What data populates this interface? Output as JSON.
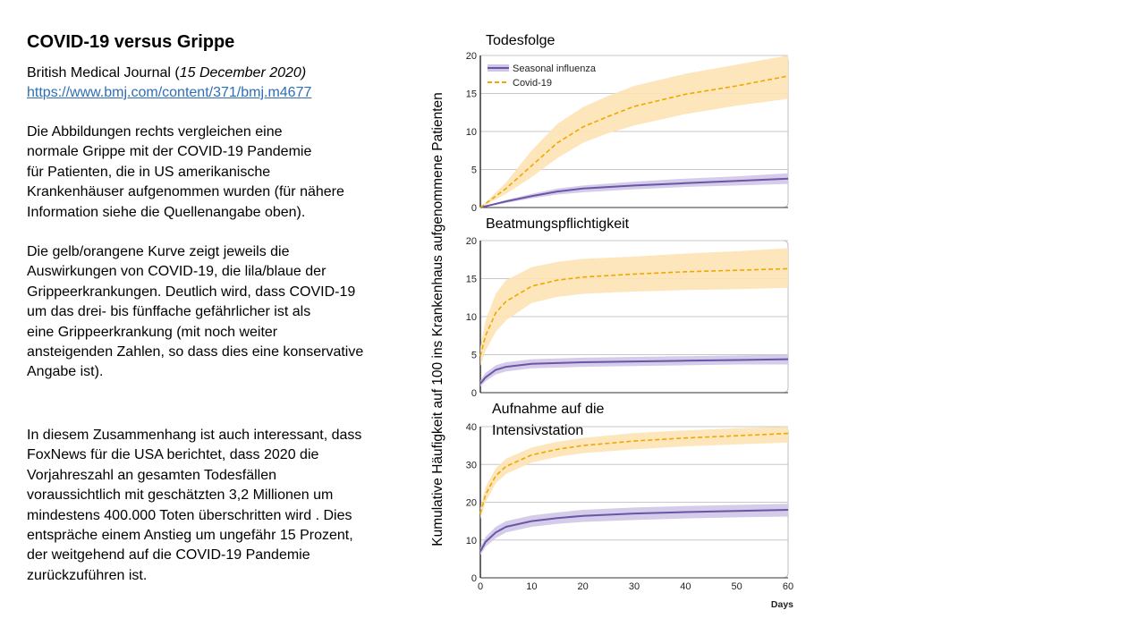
{
  "slide": {
    "title": "COVID-19 versus Grippe",
    "source_journal": "British Medical Journal (",
    "source_date": "15 December 2020)",
    "source_url": "https://www.bmj.com/content/371/bmj.m4677",
    "para1": [
      "Die Abbildungen rechts vergleichen eine",
      "normale Grippe mit der COVID-19 Pandemie",
      "für Patienten, die in US amerikanische",
      "Krankenhäuser aufgenommen wurden (für nähere",
      "Information siehe die Quellenangabe oben)."
    ],
    "para2": [
      "Die gelb/orangene Kurve zeigt jeweils die",
      "Auswirkungen von COVID-19, die lila/blaue  der",
      "Grippeerkrankungen. Deutlich wird, dass COVID-19",
      "um das drei- bis fünffache gefährlicher ist als",
      "eine Grippeerkrankung (mit noch weiter",
      "ansteigenden Zahlen, so dass dies eine konservative",
      "Angabe ist)."
    ],
    "para3": [
      "In diesem Zusammenhang ist auch interessant, dass",
      "FoxNews für die USA berichtet, dass 2020 die",
      "Vorjahreszahl an gesamten Todesfällen",
      "voraussichtlich mit geschätzten 3,2 Millionen um",
      "mindestens 400.000 Toten überschritten wird . Dies",
      "entspräche einem Anstieg um ungefähr 15 Prozent,",
      "der weitgehend auf die COVID-19 Pandemie",
      "zurückzuführen ist."
    ]
  },
  "colors": {
    "influenza": "#6b55a8",
    "influenza_band": "#cfc6e6",
    "covid": "#f0a800",
    "covid_band": "#fde3b4",
    "grid": "#c8c8c8",
    "link": "#2f6db5"
  },
  "chart_data": [
    {
      "type": "line",
      "title": "Todesfolge",
      "ylabel": "Kumulative Häufigkeit auf 100 ins Krankenhaus aufgenommene Patienten",
      "xlabel": "Days",
      "xlim": [
        0,
        60
      ],
      "ylim": [
        0,
        20
      ],
      "yticks": [
        0,
        5,
        10,
        15,
        20
      ],
      "xticks": [
        0,
        10,
        20,
        30,
        40,
        50,
        60
      ],
      "legend": "top-left",
      "series": [
        {
          "name": "Seasonal influenza",
          "style": "solid",
          "x": [
            0,
            5,
            10,
            15,
            20,
            30,
            40,
            50,
            60
          ],
          "y": [
            0,
            0.8,
            1.5,
            2.1,
            2.5,
            2.9,
            3.2,
            3.5,
            3.8
          ],
          "lower": [
            0,
            0.6,
            1.2,
            1.7,
            2.0,
            2.4,
            2.7,
            2.9,
            3.1
          ],
          "upper": [
            0,
            1.0,
            1.8,
            2.5,
            2.9,
            3.4,
            3.8,
            4.1,
            4.5
          ]
        },
        {
          "name": "Covid-19",
          "style": "dashed",
          "x": [
            0,
            5,
            10,
            15,
            20,
            25,
            30,
            40,
            50,
            60
          ],
          "y": [
            0,
            2.5,
            5.5,
            8.5,
            10.6,
            12.0,
            13.3,
            14.9,
            16.0,
            17.3
          ],
          "lower": [
            0,
            1.8,
            4.0,
            6.5,
            8.5,
            9.8,
            10.8,
            12.3,
            13.4,
            14.3
          ],
          "upper": [
            0,
            3.3,
            7.5,
            11.0,
            13.2,
            14.7,
            16.0,
            17.6,
            18.8,
            20.0
          ]
        }
      ]
    },
    {
      "type": "line",
      "title": "Beatmungspflichtigkeit",
      "xlim": [
        0,
        60
      ],
      "ylim": [
        0,
        20
      ],
      "yticks": [
        0,
        5,
        10,
        15,
        20
      ],
      "series": [
        {
          "name": "Seasonal influenza",
          "style": "solid",
          "x": [
            0,
            1,
            3,
            5,
            10,
            15,
            20,
            30,
            40,
            50,
            60
          ],
          "y": [
            1.2,
            2.0,
            3.0,
            3.4,
            3.8,
            3.9,
            4.0,
            4.1,
            4.2,
            4.3,
            4.4
          ],
          "lower": [
            0.8,
            1.5,
            2.4,
            2.8,
            3.2,
            3.3,
            3.4,
            3.5,
            3.6,
            3.7,
            3.7
          ],
          "upper": [
            1.6,
            2.6,
            3.6,
            4.0,
            4.4,
            4.5,
            4.6,
            4.7,
            4.8,
            4.9,
            5.0
          ]
        },
        {
          "name": "Covid-19",
          "style": "dashed",
          "x": [
            0,
            1,
            3,
            5,
            10,
            15,
            20,
            30,
            40,
            50,
            60
          ],
          "y": [
            4.8,
            7.5,
            10.5,
            12.0,
            14.0,
            14.8,
            15.2,
            15.6,
            15.9,
            16.1,
            16.3
          ],
          "lower": [
            3.5,
            5.5,
            8.0,
            9.5,
            11.8,
            12.6,
            13.0,
            13.3,
            13.5,
            13.6,
            13.8
          ],
          "upper": [
            6.0,
            9.5,
            13.0,
            14.8,
            16.5,
            17.2,
            17.6,
            17.9,
            18.3,
            18.6,
            19.0
          ]
        }
      ]
    },
    {
      "type": "line",
      "title": "Aufnahme auf die Intensivstation",
      "title_lines": [
        "Aufnahme auf die",
        "Intensivstation"
      ],
      "xlim": [
        0,
        60
      ],
      "ylim": [
        0,
        40
      ],
      "yticks": [
        0,
        10,
        20,
        30,
        40
      ],
      "xticks": [
        0,
        10,
        20,
        30,
        40,
        50,
        60
      ],
      "xlabel": "Days",
      "series": [
        {
          "name": "Seasonal influenza",
          "style": "solid",
          "x": [
            0,
            1,
            3,
            5,
            10,
            15,
            20,
            30,
            40,
            50,
            60
          ],
          "y": [
            7.0,
            9.5,
            12.0,
            13.5,
            15.0,
            15.8,
            16.4,
            17.0,
            17.4,
            17.7,
            18.0
          ],
          "lower": [
            6.0,
            8.2,
            10.5,
            12.0,
            13.5,
            14.3,
            14.8,
            15.3,
            15.7,
            16.0,
            16.2
          ],
          "upper": [
            8.0,
            10.8,
            13.5,
            15.0,
            16.5,
            17.3,
            18.0,
            18.6,
            19.0,
            19.3,
            19.6
          ]
        },
        {
          "name": "Covid-19",
          "style": "dashed",
          "x": [
            0,
            1,
            3,
            5,
            10,
            15,
            20,
            30,
            40,
            50,
            60
          ],
          "y": [
            17.0,
            22.0,
            27.0,
            29.5,
            32.5,
            34.0,
            35.0,
            36.2,
            37.0,
            37.6,
            38.2
          ],
          "lower": [
            15.5,
            20.0,
            25.0,
            27.5,
            30.5,
            32.0,
            33.0,
            34.0,
            34.8,
            35.3,
            35.8
          ],
          "upper": [
            18.5,
            24.0,
            29.0,
            31.5,
            34.5,
            36.0,
            37.0,
            38.3,
            39.0,
            39.6,
            40.0
          ]
        }
      ]
    }
  ]
}
